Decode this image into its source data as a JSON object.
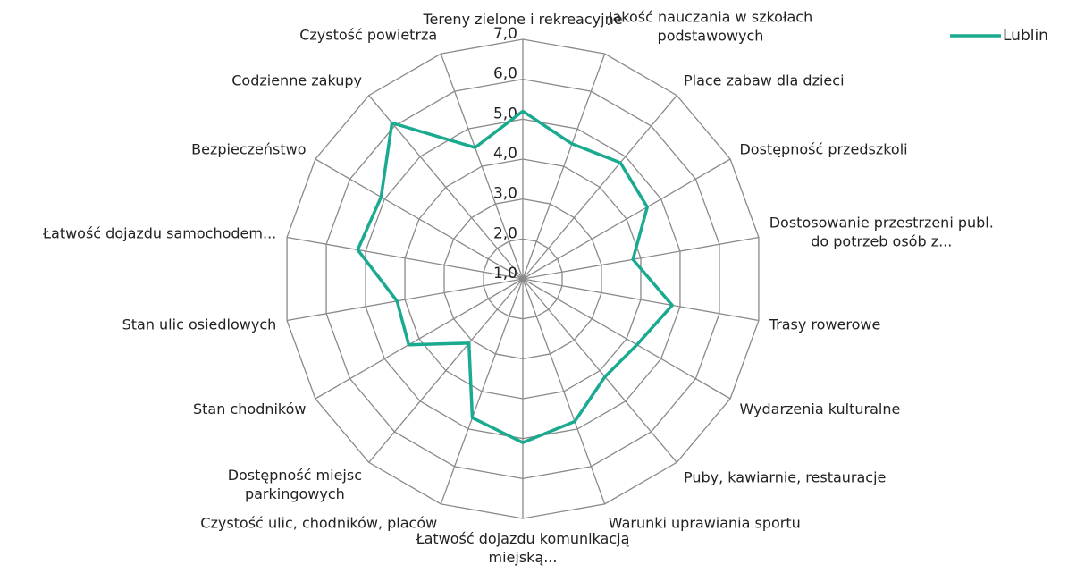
{
  "chart_data": {
    "type": "radar",
    "categories": [
      "Tereny zielone i rekreacyjne",
      "Jakość nauczania w szkołach\npodstawowych",
      "Place zabaw dla dzieci",
      "Dostępność przedszkoli",
      "Dostosowanie przestrzeni publ.\ndo potrzeb osób z...",
      "Trasy rowerowe",
      "Wydarzenia kulturalne",
      "Puby, kawiarnie, restauracje",
      "Warunki uprawiania sportu",
      "Łatwość dojazdu komunikacją\nmiejską...",
      "Czystość ulic, chodników, placów",
      "Dostępność miejsc\nparkingowych",
      "Stan chodników",
      "Stan ulic osiedlowych",
      "Łatwość dojazdu samochodem...",
      "Bezpieczeństwo",
      "Codzienne zakupy",
      "Czystość powietrza"
    ],
    "series": [
      {
        "name": "Lublin",
        "color": "#1aaa8f",
        "values": [
          5.2,
          4.6,
          4.8,
          4.6,
          3.8,
          4.8,
          4.3,
          4.2,
          4.8,
          5.1,
          4.7,
          3.1,
          4.3,
          4.2,
          5.2,
          5.1,
          6.1,
          4.5
        ]
      }
    ],
    "ylim": [
      1,
      7
    ],
    "yticks": [
      {
        "value": 1,
        "label": "1,0"
      },
      {
        "value": 2,
        "label": "2,0"
      },
      {
        "value": 3,
        "label": "3,0"
      },
      {
        "value": 4,
        "label": "4,0"
      },
      {
        "value": 5,
        "label": "5,0"
      },
      {
        "value": 6,
        "label": "6,0"
      },
      {
        "value": 7,
        "label": "7,0"
      }
    ],
    "grid": true,
    "legend": "top-right"
  }
}
